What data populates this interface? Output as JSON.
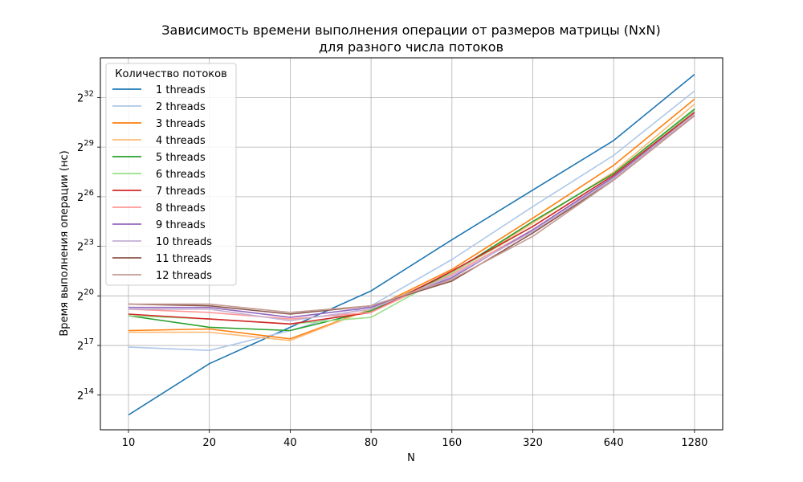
{
  "chart_data": {
    "type": "line",
    "title": "Зависимость времени выполнения операции от размеров матрицы (NxN)",
    "subtitle": "для разного числа потоков",
    "xlabel": "N",
    "ylabel": "Время выполнения операции (нс)",
    "x_scale": "categorical (log2 spaced)",
    "y_scale": "log2",
    "y_unit_note": "y values are log2 exponents of time in ns",
    "categories": [
      "10",
      "20",
      "40",
      "80",
      "160",
      "320",
      "640",
      "1280"
    ],
    "ylim": [
      11.9,
      34.4
    ],
    "y_ticks": [
      14,
      17,
      20,
      23,
      26,
      29,
      32
    ],
    "y_tick_base": "2",
    "grid": true,
    "legend": {
      "title": "Количество потоков",
      "placement": "upper-left"
    },
    "series": [
      {
        "name": "1 threads",
        "color": "#1f77b4",
        "values": [
          12.8,
          15.9,
          18.1,
          20.3,
          23.4,
          26.4,
          29.4,
          33.4
        ]
      },
      {
        "name": "2 threads",
        "color": "#aec7e8",
        "values": [
          16.9,
          16.7,
          17.9,
          19.4,
          22.2,
          25.4,
          28.5,
          32.4
        ]
      },
      {
        "name": "3 threads",
        "color": "#ff7f0e",
        "values": [
          17.9,
          18.0,
          17.4,
          19.2,
          21.6,
          24.7,
          27.9,
          31.9
        ]
      },
      {
        "name": "4 threads",
        "color": "#ffbb78",
        "values": [
          17.8,
          17.8,
          17.3,
          19.2,
          21.4,
          24.4,
          27.5,
          31.6
        ]
      },
      {
        "name": "5 threads",
        "color": "#2ca02c",
        "values": [
          18.8,
          18.1,
          17.9,
          19.1,
          21.4,
          24.5,
          27.4,
          31.3
        ]
      },
      {
        "name": "6 threads",
        "color": "#98df8a",
        "values": [
          18.8,
          18.6,
          18.3,
          18.7,
          21.4,
          24.2,
          27.3,
          31.2
        ]
      },
      {
        "name": "7 threads",
        "color": "#d62728",
        "values": [
          18.9,
          18.6,
          18.3,
          19.0,
          21.5,
          24.2,
          27.3,
          31.1
        ]
      },
      {
        "name": "8 threads",
        "color": "#ff9896",
        "values": [
          19.2,
          19.0,
          18.6,
          19.0,
          21.3,
          24.0,
          27.2,
          31.0
        ]
      },
      {
        "name": "9 threads",
        "color": "#9467bd",
        "values": [
          19.3,
          19.3,
          18.7,
          19.3,
          21.1,
          24.0,
          27.2,
          31.0
        ]
      },
      {
        "name": "10 threads",
        "color": "#c5b0d5",
        "values": [
          19.2,
          19.2,
          18.5,
          19.2,
          21.2,
          23.9,
          27.1,
          31.0
        ]
      },
      {
        "name": "11 threads",
        "color": "#8c564b",
        "values": [
          19.5,
          19.4,
          18.9,
          19.4,
          20.9,
          23.8,
          27.0,
          30.9
        ]
      },
      {
        "name": "12 threads",
        "color": "#c49c94",
        "values": [
          19.5,
          19.5,
          19.0,
          19.4,
          21.0,
          23.6,
          27.0,
          30.9
        ]
      }
    ]
  }
}
